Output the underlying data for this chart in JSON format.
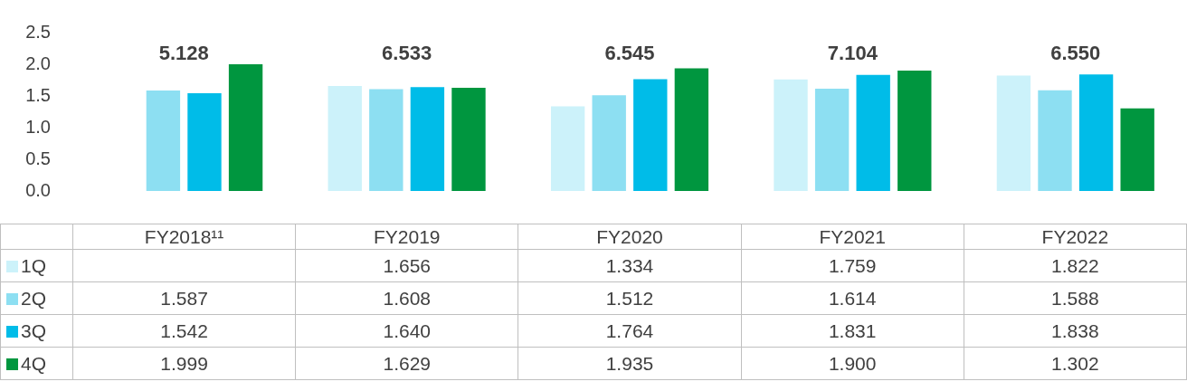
{
  "chart_data": {
    "type": "bar",
    "categories": [
      "FY2018¹¹",
      "FY2019",
      "FY2020",
      "FY2021",
      "FY2022"
    ],
    "series": [
      {
        "name": "1Q",
        "color": "#ccf2fa",
        "values": [
          null,
          1.656,
          1.334,
          1.759,
          1.822
        ],
        "value_labels": [
          null,
          "1.656",
          "1.334",
          "1.759",
          "1.822"
        ]
      },
      {
        "name": "2Q",
        "color": "#8ddff2",
        "values": [
          1.587,
          1.608,
          1.512,
          1.614,
          1.588
        ],
        "value_labels": [
          "1.587",
          "1.608",
          "1.512",
          "1.614",
          "1.588"
        ]
      },
      {
        "name": "3Q",
        "color": "#00bce8",
        "values": [
          1.542,
          1.64,
          1.764,
          1.831,
          1.838
        ],
        "value_labels": [
          "1.542",
          "1.640",
          "1.764",
          "1.831",
          "1.838"
        ]
      },
      {
        "name": "4Q",
        "color": "#00963f",
        "values": [
          1.999,
          1.629,
          1.935,
          1.9,
          1.302
        ],
        "value_labels": [
          "1.999",
          "1.629",
          "1.935",
          "1.900",
          "1.302"
        ]
      }
    ],
    "ylim": [
      0,
      2.5
    ],
    "yticks": [
      {
        "value": 0,
        "label": "0.0"
      },
      0.5,
      {
        "value": 1,
        "label": "1.0"
      },
      1.5,
      {
        "value": 2,
        "label": "2.0"
      },
      2.5
    ],
    "legend": "bottom left",
    "totals": [
      "5.128",
      "6.533",
      "6.545",
      "7.104",
      "6.550"
    ]
  }
}
